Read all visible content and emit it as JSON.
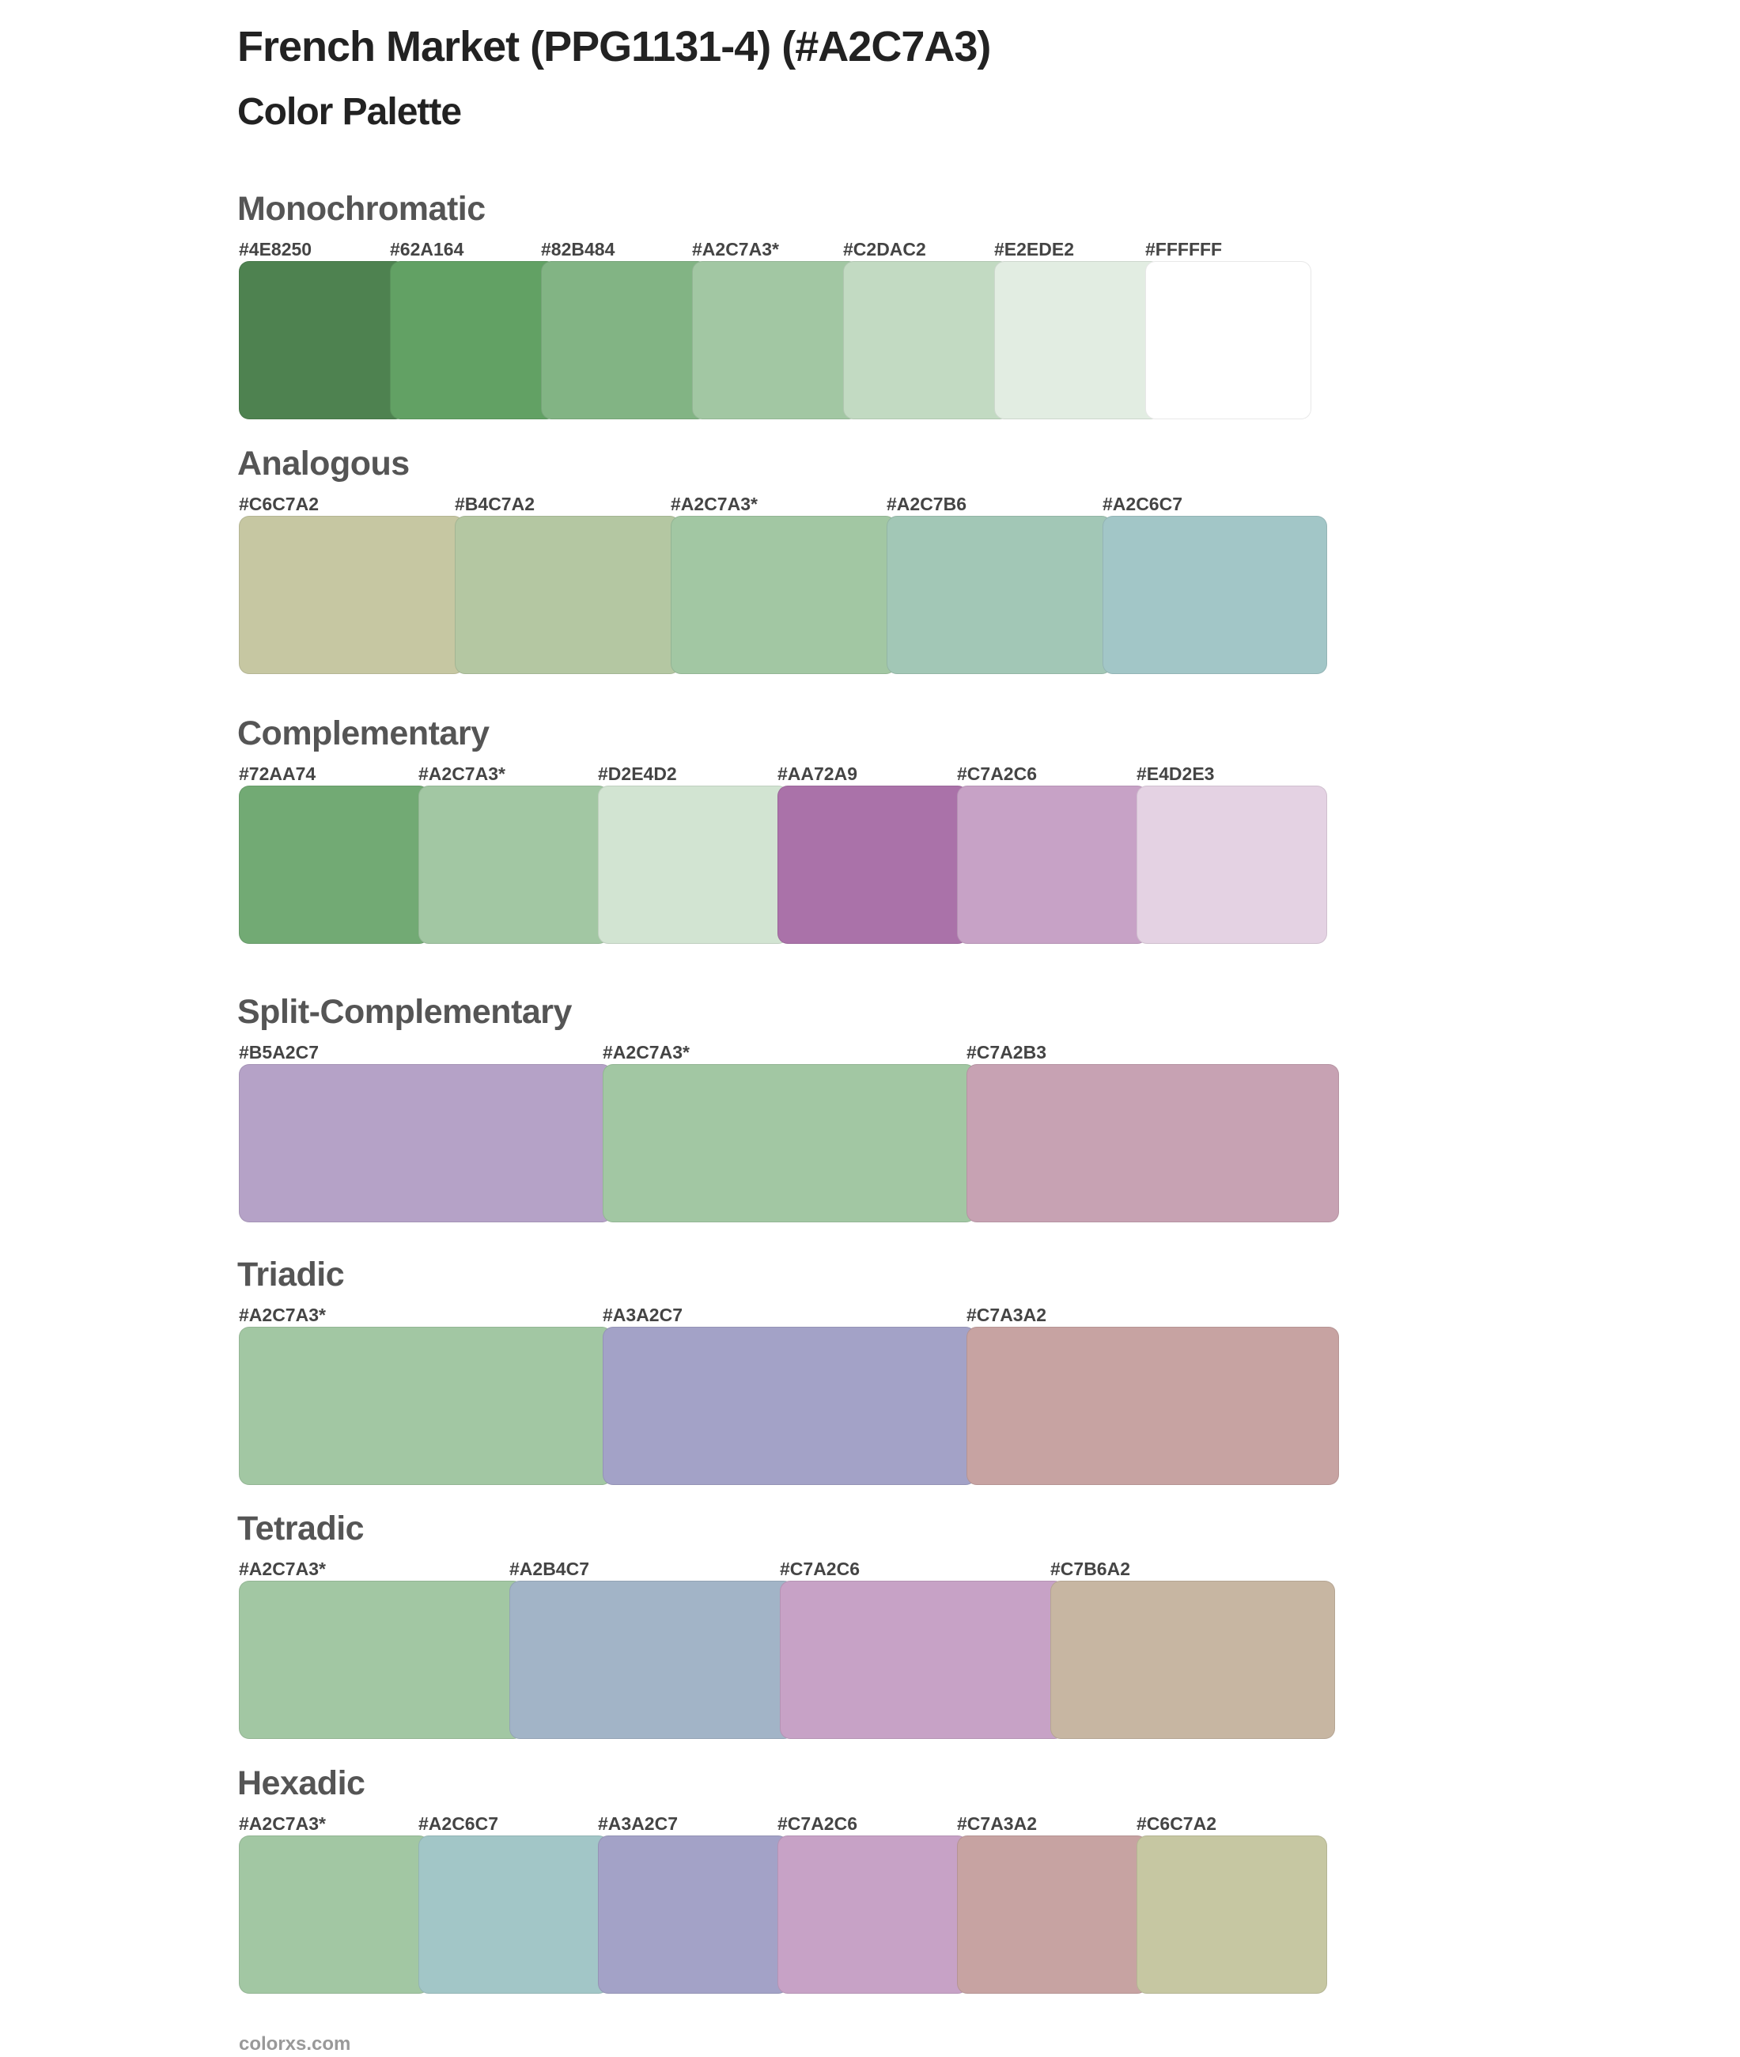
{
  "header": {
    "title": "French Market (PPG1131-4) (#A2C7A3)",
    "subtitle": "Color Palette"
  },
  "sections": [
    {
      "name": "Monochromatic",
      "colors": [
        {
          "label": "#4E8250",
          "hex": "#4E8250"
        },
        {
          "label": "#62A164",
          "hex": "#62A164"
        },
        {
          "label": "#82B484",
          "hex": "#82B484"
        },
        {
          "label": "#A2C7A3*",
          "hex": "#A2C7A3"
        },
        {
          "label": "#C2DAC2",
          "hex": "#C2DAC2"
        },
        {
          "label": "#E2EDE2",
          "hex": "#E2EDE2"
        },
        {
          "label": "#FFFFFF",
          "hex": "#FFFFFF"
        }
      ]
    },
    {
      "name": "Analogous",
      "colors": [
        {
          "label": "#C6C7A2",
          "hex": "#C6C7A2"
        },
        {
          "label": "#B4C7A2",
          "hex": "#B4C7A2"
        },
        {
          "label": "#A2C7A3*",
          "hex": "#A2C7A3"
        },
        {
          "label": "#A2C7B6",
          "hex": "#A2C7B6"
        },
        {
          "label": "#A2C6C7",
          "hex": "#A2C6C7"
        }
      ]
    },
    {
      "name": "Complementary",
      "colors": [
        {
          "label": "#72AA74",
          "hex": "#72AA74"
        },
        {
          "label": "#A2C7A3*",
          "hex": "#A2C7A3"
        },
        {
          "label": "#D2E4D2",
          "hex": "#D2E4D2"
        },
        {
          "label": "#AA72A9",
          "hex": "#AA72A9"
        },
        {
          "label": "#C7A2C6",
          "hex": "#C7A2C6"
        },
        {
          "label": "#E4D2E3",
          "hex": "#E4D2E3"
        }
      ]
    },
    {
      "name": "Split-Complementary",
      "colors": [
        {
          "label": "#B5A2C7",
          "hex": "#B5A2C7"
        },
        {
          "label": "#A2C7A3*",
          "hex": "#A2C7A3"
        },
        {
          "label": "#C7A2B3",
          "hex": "#C7A2B3"
        }
      ]
    },
    {
      "name": "Triadic",
      "colors": [
        {
          "label": "#A2C7A3*",
          "hex": "#A2C7A3"
        },
        {
          "label": "#A3A2C7",
          "hex": "#A3A2C7"
        },
        {
          "label": "#C7A3A2",
          "hex": "#C7A3A2"
        }
      ]
    },
    {
      "name": "Tetradic",
      "colors": [
        {
          "label": "#A2C7A3*",
          "hex": "#A2C7A3"
        },
        {
          "label": "#A2B4C7",
          "hex": "#A2B4C7"
        },
        {
          "label": "#C7A2C6",
          "hex": "#C7A2C6"
        },
        {
          "label": "#C7B6A2",
          "hex": "#C7B6A2"
        }
      ]
    },
    {
      "name": "Hexadic",
      "colors": [
        {
          "label": "#A2C7A3*",
          "hex": "#A2C7A3"
        },
        {
          "label": "#A2C6C7",
          "hex": "#A2C6C7"
        },
        {
          "label": "#A3A2C7",
          "hex": "#A3A2C7"
        },
        {
          "label": "#C7A2C6",
          "hex": "#C7A2C6"
        },
        {
          "label": "#C7A3A2",
          "hex": "#C7A3A2"
        },
        {
          "label": "#C6C7A2",
          "hex": "#C6C7A2"
        }
      ]
    }
  ],
  "footer": {
    "text": "colorxs.com"
  }
}
